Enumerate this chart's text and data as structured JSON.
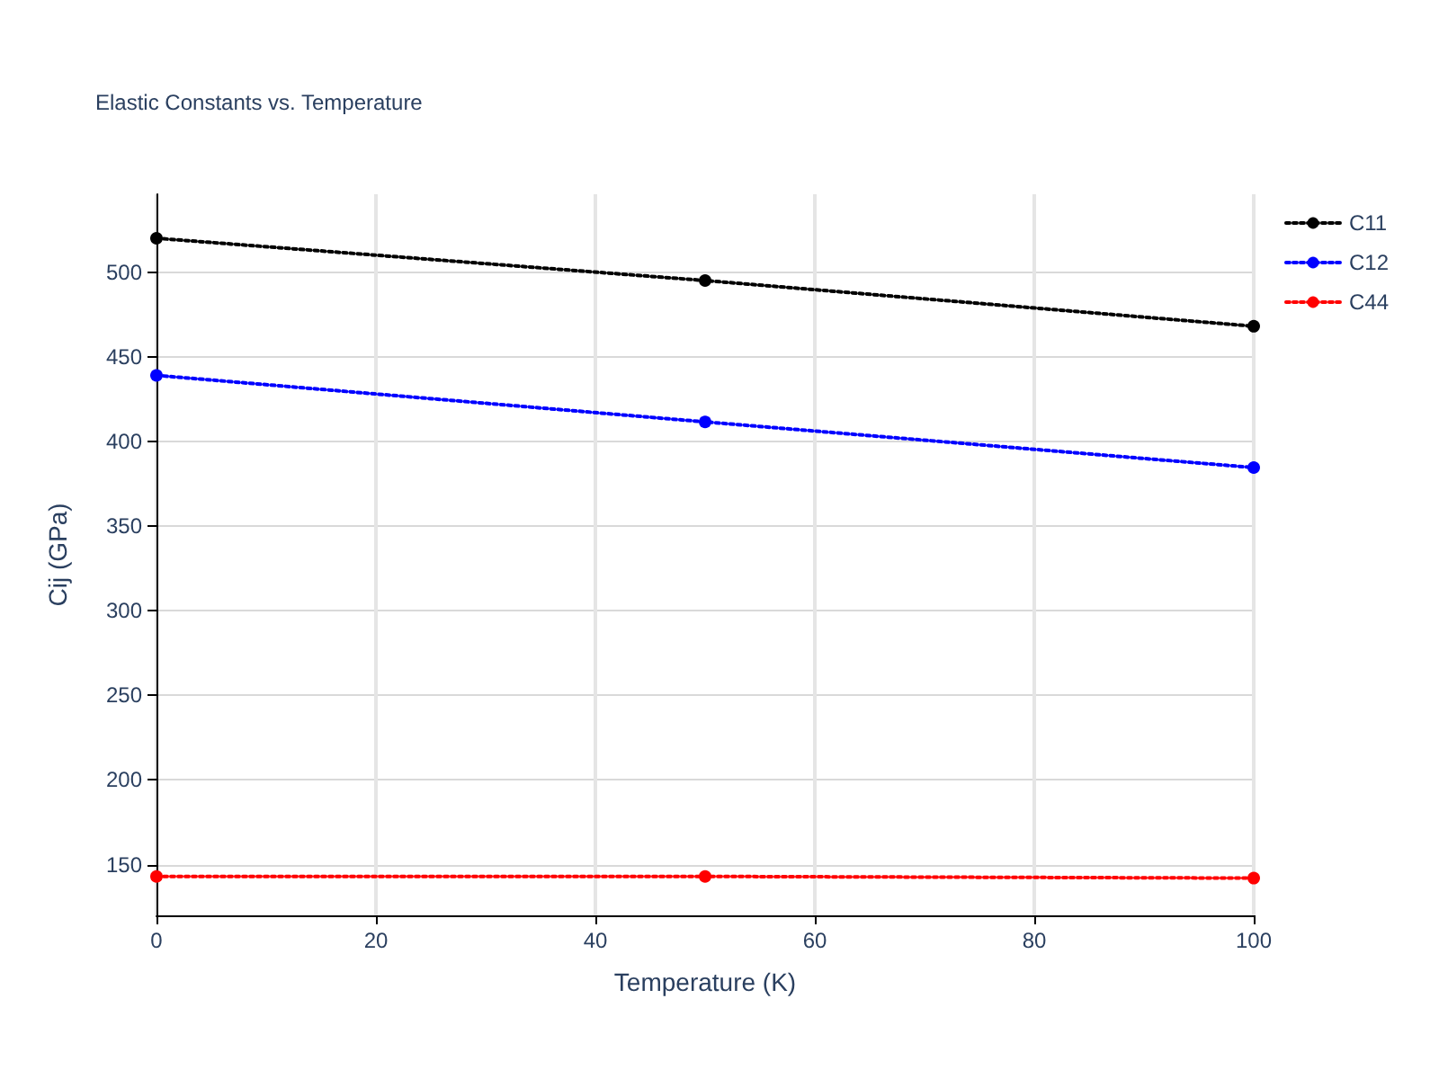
{
  "chart_data": {
    "type": "line",
    "title": "Elastic Constants vs. Temperature",
    "xlabel": "Temperature (K)",
    "ylabel": "Cij (GPa)",
    "x": [
      0,
      50,
      100
    ],
    "series": [
      {
        "name": "C11",
        "color": "#000000",
        "values": [
          520,
          495,
          468
        ]
      },
      {
        "name": "C12",
        "color": "#0000ff",
        "values": [
          439,
          411.5,
          384.5
        ]
      },
      {
        "name": "C44",
        "color": "#ff0000",
        "values": [
          143,
          143,
          142
        ]
      }
    ],
    "xlim": [
      0,
      100
    ],
    "xticks": [
      0,
      20,
      40,
      60,
      80,
      100
    ],
    "ylim": [
      120,
      546
    ],
    "yticks": [
      150,
      200,
      250,
      300,
      350,
      400,
      450,
      500
    ],
    "grid": true,
    "legend": "top right",
    "marker": "circle",
    "line_style": "dotted"
  }
}
